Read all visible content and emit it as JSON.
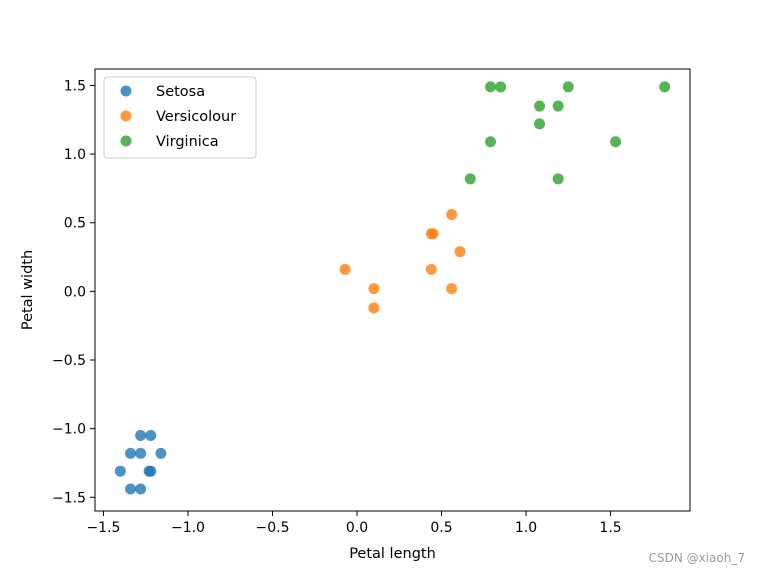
{
  "watermark": "CSDN @xiaoh_7",
  "chart_data": {
    "type": "scatter",
    "title": "",
    "xlabel": "Petal length",
    "ylabel": "Petal width",
    "xlim": [
      -1.55,
      1.97
    ],
    "ylim": [
      -1.6,
      1.62
    ],
    "grid": false,
    "legend_position": "top-left",
    "x_ticks": [
      -1.5,
      -1.0,
      -0.5,
      0.0,
      0.5,
      1.0,
      1.5
    ],
    "x_tick_labels": [
      "−1.5",
      "−1.0",
      "−0.5",
      "0.0",
      "0.5",
      "1.0",
      "1.5"
    ],
    "y_ticks": [
      -1.5,
      -1.0,
      -0.5,
      0.0,
      0.5,
      1.0,
      1.5
    ],
    "y_tick_labels": [
      "−1.5",
      "−1.0",
      "−0.5",
      "0.0",
      "0.5",
      "1.0",
      "1.5"
    ],
    "series": [
      {
        "name": "Setosa",
        "color": "#1f77b4",
        "points": [
          [
            -1.28,
            -1.05
          ],
          [
            -1.22,
            -1.05
          ],
          [
            -1.34,
            -1.18
          ],
          [
            -1.28,
            -1.18
          ],
          [
            -1.16,
            -1.18
          ],
          [
            -1.4,
            -1.31
          ],
          [
            -1.23,
            -1.31
          ],
          [
            -1.22,
            -1.31
          ],
          [
            -1.34,
            -1.44
          ],
          [
            -1.28,
            -1.44
          ]
        ]
      },
      {
        "name": "Versicolour",
        "color": "#ff7f0e",
        "points": [
          [
            -0.07,
            0.16
          ],
          [
            0.1,
            0.02
          ],
          [
            0.1,
            -0.12
          ],
          [
            0.44,
            0.42
          ],
          [
            0.45,
            0.42
          ],
          [
            0.44,
            0.16
          ],
          [
            0.56,
            0.56
          ],
          [
            0.56,
            0.02
          ],
          [
            0.61,
            0.29
          ]
        ]
      },
      {
        "name": "Virginica",
        "color": "#2ca02c",
        "points": [
          [
            0.79,
            1.49
          ],
          [
            0.85,
            1.49
          ],
          [
            1.25,
            1.49
          ],
          [
            1.82,
            1.49
          ],
          [
            1.08,
            1.35
          ],
          [
            1.19,
            1.35
          ],
          [
            1.08,
            1.22
          ],
          [
            0.79,
            1.09
          ],
          [
            1.53,
            1.09
          ],
          [
            0.67,
            0.82
          ],
          [
            1.19,
            0.82
          ]
        ]
      }
    ]
  }
}
